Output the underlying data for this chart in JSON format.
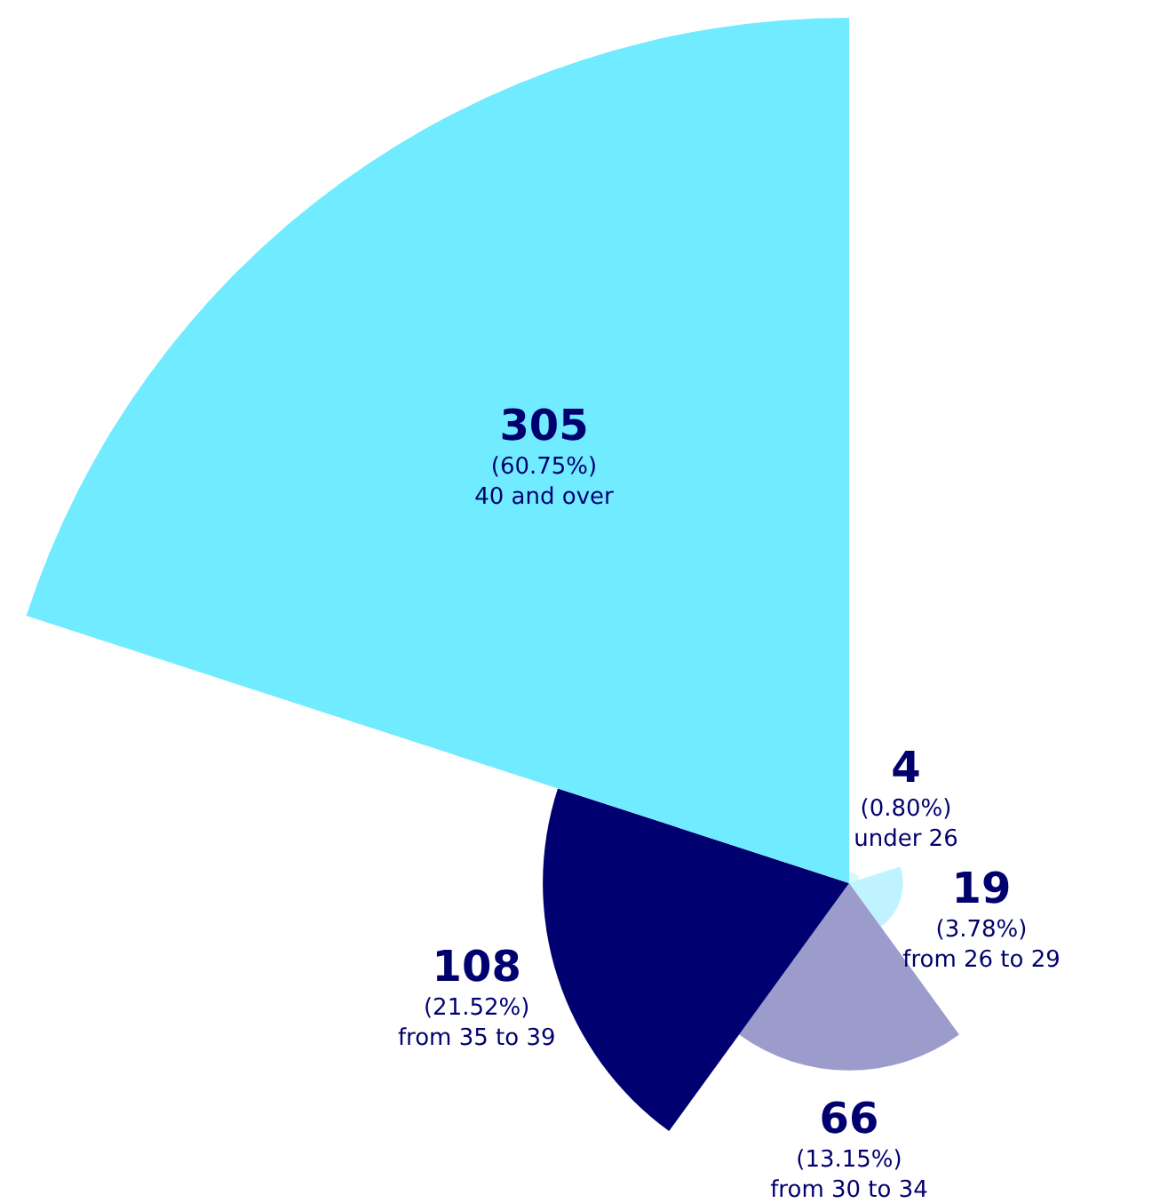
{
  "chart_data": {
    "type": "other",
    "categories": [
      "under 26",
      "from 26 to 29",
      "from 30 to 34",
      "from 35 to 39",
      "40 and over"
    ],
    "values": [
      4,
      19,
      66,
      108,
      305
    ],
    "colors": [
      "#d6f8ff",
      "#bff3ff",
      "#9b9ccb",
      "#000070",
      "#70ebff"
    ],
    "data_labels": true,
    "annotations": [
      "(0.80%)",
      "(3.78%)",
      "(13.15%)",
      "(21.52%)",
      "(60.75%)"
    ]
  }
}
